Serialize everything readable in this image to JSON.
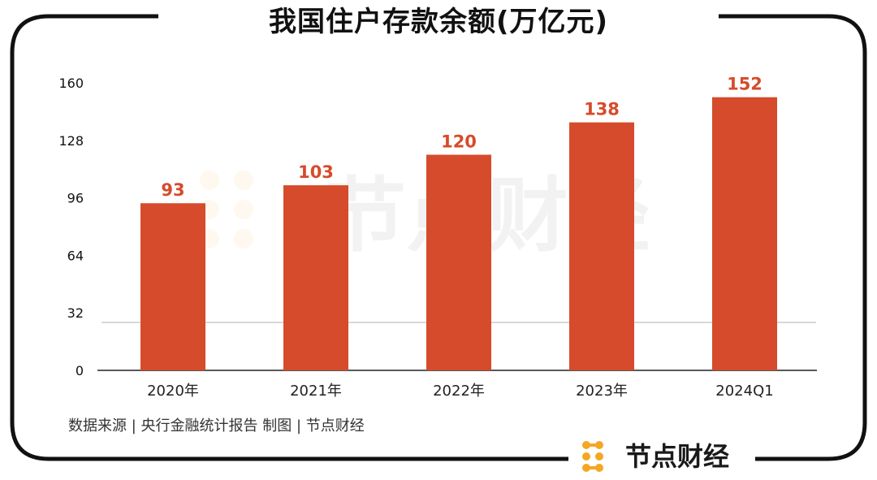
{
  "title": "我国住户存款余额(万亿元)",
  "source": "数据来源 | 央行金融统计报告  制图 | 节点财经",
  "brand": "节点财经",
  "watermark": "节点财经",
  "colors": {
    "bar": "#D64B2B",
    "label": "#D64B2B",
    "frame": "#111111",
    "logo": "#F5A623"
  },
  "chart_data": {
    "type": "bar",
    "title": "我国住户存款余额(万亿元)",
    "categories": [
      "2020年",
      "2021年",
      "2022年",
      "2023年",
      "2024Q1"
    ],
    "values": [
      93,
      103,
      120,
      138,
      152
    ],
    "value_labels": [
      "93",
      "103",
      "120",
      "138",
      "152"
    ],
    "y_ticks": [
      "0",
      "32",
      "64",
      "96",
      "128",
      "160"
    ],
    "ylim": [
      0,
      160
    ],
    "xlabel": "",
    "ylabel": "",
    "legend": "none",
    "grid": false
  }
}
